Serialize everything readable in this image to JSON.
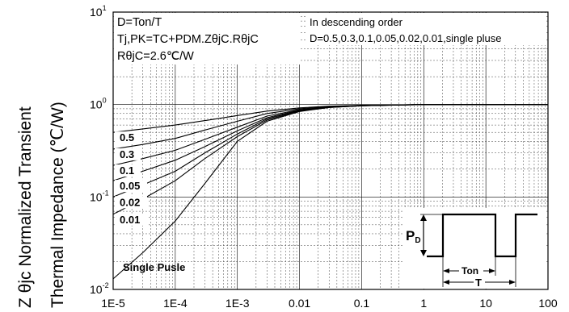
{
  "chart_data": {
    "type": "line",
    "title": "",
    "xlabel": "",
    "ylabel_line1": "Z θjc   Normalized Transient",
    "ylabel_line2": "Thermal   Impedance (℃/W)",
    "xscale": "log",
    "yscale": "log",
    "xlim": [
      1e-05,
      100
    ],
    "ylim": [
      0.01,
      10
    ],
    "grid": true,
    "x_tick_labels": [
      "1E-5",
      "1E-4",
      "1E-3",
      "0.01",
      "0.1",
      "1",
      "10",
      "100"
    ],
    "y_tick_labels": [
      {
        "base": "10",
        "exp": "1"
      },
      {
        "base": "10",
        "exp": "0"
      },
      {
        "base": "10",
        "exp": "-1"
      },
      {
        "base": "10",
        "exp": "-2"
      }
    ],
    "annotations": {
      "formula_lines": [
        "D=Ton/T",
        "Tj,PK=TC+PDM.ZθjC.RθjC",
        "RθjC=2.6℃/W"
      ],
      "order_lines": [
        "In descending order",
        "D=0.5,0.3,0.1,0.05,0.02,0.01,single pluse"
      ]
    },
    "pulse_diagram": {
      "pd_label_base": "P",
      "pd_label_sub": "D",
      "ton_label": "Ton",
      "t_label": "T"
    },
    "series": [
      {
        "name": "0.5",
        "x": [
          1e-05,
          3e-05,
          0.0001,
          0.0003,
          0.001,
          0.003,
          0.01,
          0.03,
          0.1,
          1,
          100
        ],
        "y": [
          0.5,
          0.545,
          0.6,
          0.67,
          0.76,
          0.85,
          0.92,
          0.96,
          0.98,
          1.0,
          1.0
        ]
      },
      {
        "name": "0.3",
        "x": [
          1e-05,
          3e-05,
          0.0001,
          0.0003,
          0.001,
          0.003,
          0.01,
          0.03,
          0.1,
          1,
          100
        ],
        "y": [
          0.33,
          0.37,
          0.43,
          0.53,
          0.66,
          0.8,
          0.9,
          0.95,
          0.98,
          1.0,
          1.0
        ]
      },
      {
        "name": "0.1",
        "x": [
          1e-05,
          3e-05,
          0.0001,
          0.0003,
          0.001,
          0.003,
          0.01,
          0.03,
          0.1,
          1,
          100
        ],
        "y": [
          0.22,
          0.26,
          0.32,
          0.42,
          0.57,
          0.75,
          0.88,
          0.94,
          0.975,
          1.0,
          1.0
        ]
      },
      {
        "name": "0.05",
        "x": [
          1e-05,
          3e-05,
          0.0001,
          0.0003,
          0.001,
          0.003,
          0.01,
          0.03,
          0.1,
          1,
          100
        ],
        "y": [
          0.15,
          0.19,
          0.25,
          0.35,
          0.52,
          0.72,
          0.87,
          0.94,
          0.975,
          1.0,
          1.0
        ]
      },
      {
        "name": "0.02",
        "x": [
          1e-05,
          3e-05,
          0.0001,
          0.0003,
          0.001,
          0.003,
          0.01,
          0.03,
          0.1,
          1,
          100
        ],
        "y": [
          0.1,
          0.135,
          0.19,
          0.3,
          0.48,
          0.7,
          0.86,
          0.935,
          0.97,
          1.0,
          1.0
        ]
      },
      {
        "name": "0.01",
        "x": [
          1e-05,
          3e-05,
          0.0001,
          0.0003,
          0.001,
          0.003,
          0.01,
          0.03,
          0.1,
          1,
          100
        ],
        "y": [
          0.065,
          0.095,
          0.15,
          0.26,
          0.45,
          0.68,
          0.85,
          0.93,
          0.97,
          1.0,
          1.0
        ]
      },
      {
        "name": "Single Pusle",
        "x": [
          1e-05,
          3e-05,
          0.0001,
          0.0003,
          0.001,
          0.003,
          0.01,
          0.03,
          0.1,
          1,
          100
        ],
        "y": [
          0.013,
          0.025,
          0.055,
          0.14,
          0.4,
          0.66,
          0.84,
          0.93,
          0.97,
          1.0,
          1.0
        ]
      }
    ]
  }
}
